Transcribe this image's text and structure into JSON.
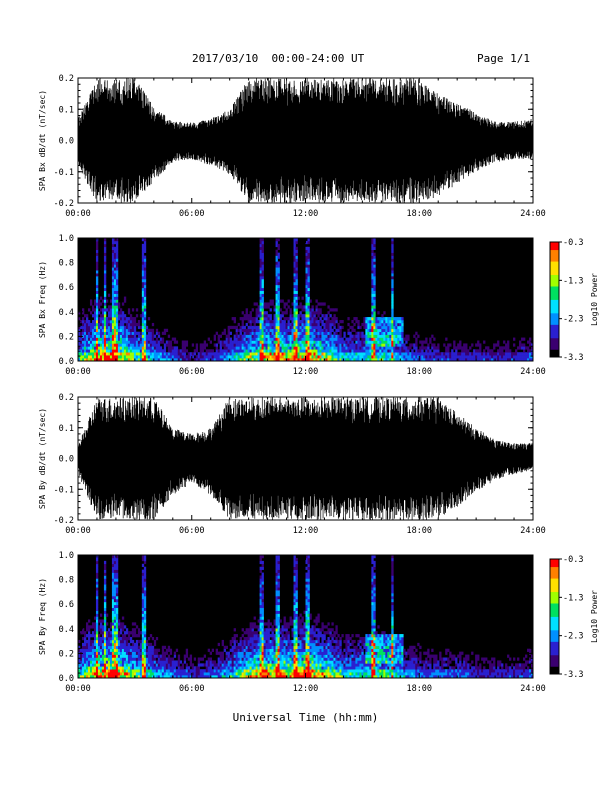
{
  "header": {
    "date_range": "2017/03/10  00:00-24:00 UT",
    "page": "Page 1/1"
  },
  "xaxis": {
    "label": "Universal Time (hh:mm)",
    "ticks": [
      "00:00",
      "06:00",
      "12:00",
      "18:00",
      "24:00"
    ],
    "range_hours": [
      0,
      24
    ]
  },
  "colors": {
    "signal": "#000000",
    "background": "#ffffff",
    "spectrogram_floor": "#000000",
    "colormap": [
      "#000000",
      "#3a0070",
      "#2a20d0",
      "#0090ff",
      "#00e0ff",
      "#00e060",
      "#a0ff00",
      "#ffe000",
      "#ff8000",
      "#ff0000"
    ]
  },
  "colorbar": {
    "label": "Log10 Power",
    "ticks": [
      "-0.3",
      "-1.3",
      "-2.3",
      "-3.3"
    ],
    "range": [
      -3.3,
      -0.3
    ]
  },
  "chart_data": [
    {
      "id": "bx-timeseries",
      "type": "area",
      "ylabel": "SPA Bx dB/dt (nT/sec)",
      "ylim": [
        -0.2,
        0.2
      ],
      "yticks": [
        "0.2",
        "0.1",
        "0.0",
        "-0.1",
        "-0.2"
      ],
      "x_hours": [
        0,
        1,
        2,
        3,
        4,
        5,
        6,
        7,
        8,
        9,
        10,
        11,
        12,
        13,
        14,
        15,
        16,
        17,
        18,
        19,
        20,
        21,
        22,
        23,
        24
      ],
      "envelope_max": [
        0.07,
        0.2,
        0.2,
        0.2,
        0.11,
        0.06,
        0.06,
        0.07,
        0.1,
        0.2,
        0.2,
        0.2,
        0.2,
        0.2,
        0.2,
        0.2,
        0.2,
        0.2,
        0.2,
        0.15,
        0.12,
        0.09,
        0.06,
        0.06,
        0.07
      ],
      "envelope_min": [
        -0.08,
        -0.2,
        -0.2,
        -0.2,
        -0.13,
        -0.07,
        -0.06,
        -0.08,
        -0.11,
        -0.2,
        -0.2,
        -0.2,
        -0.2,
        -0.2,
        -0.2,
        -0.2,
        -0.2,
        -0.2,
        -0.2,
        -0.18,
        -0.14,
        -0.1,
        -0.07,
        -0.06,
        -0.06
      ]
    },
    {
      "id": "bx-spectrogram",
      "type": "heatmap",
      "ylabel": "SPA Bx Freq (Hz)",
      "ylim": [
        0,
        1.0
      ],
      "yticks": [
        "1.0",
        "0.8",
        "0.6",
        "0.4",
        "0.2",
        "0.0"
      ],
      "activity_by_hour": [
        0.45,
        0.85,
        0.95,
        0.55,
        0.35,
        0.25,
        0.15,
        0.2,
        0.35,
        0.6,
        0.8,
        0.75,
        0.85,
        0.7,
        0.4,
        0.45,
        0.5,
        0.3,
        0.25,
        0.2,
        0.2,
        0.2,
        0.2,
        0.2,
        0.25
      ],
      "strong_hours": [
        1.0,
        1.4,
        1.9,
        2.0,
        3.5,
        9.7,
        10.5,
        11.5,
        12.1,
        15.6,
        16.6
      ]
    },
    {
      "id": "by-timeseries",
      "type": "area",
      "ylabel": "SPA By dB/dt (nT/sec)",
      "ylim": [
        -0.2,
        0.2
      ],
      "yticks": [
        "0.2",
        "0.1",
        "0.0",
        "-0.1",
        "-0.2"
      ],
      "x_hours": [
        0,
        1,
        2,
        3,
        4,
        5,
        6,
        7,
        8,
        9,
        10,
        11,
        12,
        13,
        14,
        15,
        16,
        17,
        18,
        19,
        20,
        21,
        22,
        23,
        24
      ],
      "envelope_max": [
        0.04,
        0.2,
        0.2,
        0.2,
        0.2,
        0.1,
        0.08,
        0.1,
        0.2,
        0.2,
        0.2,
        0.2,
        0.2,
        0.2,
        0.2,
        0.2,
        0.2,
        0.2,
        0.2,
        0.2,
        0.15,
        0.1,
        0.06,
        0.05,
        0.05
      ],
      "envelope_min": [
        -0.05,
        -0.2,
        -0.2,
        -0.2,
        -0.2,
        -0.12,
        -0.08,
        -0.12,
        -0.2,
        -0.2,
        -0.2,
        -0.2,
        -0.2,
        -0.2,
        -0.2,
        -0.2,
        -0.2,
        -0.2,
        -0.2,
        -0.2,
        -0.16,
        -0.11,
        -0.07,
        -0.05,
        -0.04
      ]
    },
    {
      "id": "by-spectrogram",
      "type": "heatmap",
      "ylabel": "SPA By Freq (Hz)",
      "ylim": [
        0,
        1.0
      ],
      "yticks": [
        "1.0",
        "0.8",
        "0.6",
        "0.4",
        "0.2",
        "0.0"
      ],
      "activity_by_hour": [
        0.45,
        0.85,
        0.95,
        0.6,
        0.4,
        0.3,
        0.2,
        0.25,
        0.4,
        0.7,
        0.85,
        0.8,
        0.9,
        0.75,
        0.45,
        0.5,
        0.55,
        0.35,
        0.3,
        0.25,
        0.25,
        0.2,
        0.2,
        0.2,
        0.25
      ],
      "strong_hours": [
        1.0,
        1.4,
        1.9,
        2.0,
        3.5,
        9.7,
        10.5,
        11.5,
        12.1,
        15.6,
        16.6
      ]
    }
  ]
}
